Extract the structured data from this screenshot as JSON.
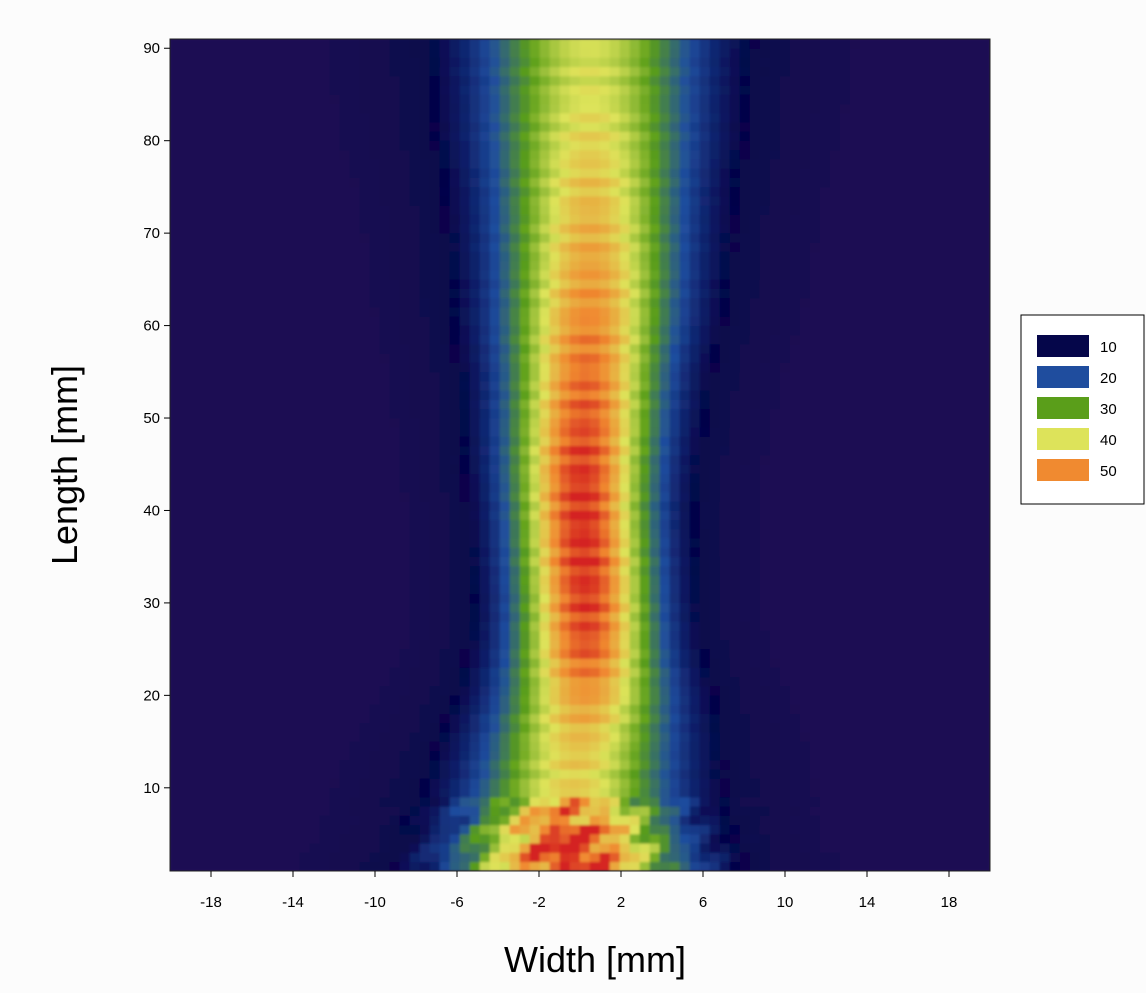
{
  "chart_data": {
    "type": "heatmap",
    "title": "",
    "xlabel": "Width [mm]",
    "ylabel": "Length [mm]",
    "xlim": [
      -20,
      20
    ],
    "ylim": [
      1,
      91
    ],
    "xticks": [
      -18,
      -14,
      -10,
      -6,
      -2,
      2,
      6,
      10,
      14,
      18
    ],
    "yticks": [
      10,
      20,
      30,
      40,
      50,
      60,
      70,
      80,
      90
    ],
    "legend": {
      "position": "right",
      "entries": [
        {
          "label": "10",
          "color": "#05064a"
        },
        {
          "label": "20",
          "color": "#1f4d9e"
        },
        {
          "label": "30",
          "color": "#5a9e1a"
        },
        {
          "label": "40",
          "color": "#dde35a"
        },
        {
          "label": "50",
          "color": "#f08a30"
        }
      ]
    },
    "colorscale": [
      {
        "value": 5,
        "color": "#1b0a52"
      },
      {
        "value": 10,
        "color": "#05064a"
      },
      {
        "value": 20,
        "color": "#1f4d9e"
      },
      {
        "value": 30,
        "color": "#5a9e1a"
      },
      {
        "value": 40,
        "color": "#dde35a"
      },
      {
        "value": 50,
        "color": "#f08a30"
      },
      {
        "value": 58,
        "color": "#d42020"
      }
    ],
    "field_profile": {
      "length_mm": [
        1,
        5,
        10,
        15,
        20,
        25,
        30,
        35,
        40,
        45,
        50,
        55,
        60,
        65,
        70,
        75,
        80,
        85,
        90
      ],
      "center_mm": [
        -0.5,
        -0.5,
        -0.3,
        0.0,
        0.3,
        0.3,
        0.3,
        0.2,
        0.1,
        0.1,
        0.2,
        0.3,
        0.4,
        0.5,
        0.5,
        0.5,
        0.5,
        0.5,
        0.5
      ],
      "peak_value": [
        52,
        50,
        36,
        38,
        42,
        48,
        50,
        51,
        51,
        50,
        48,
        46,
        44,
        42,
        40,
        38,
        36,
        34,
        33
      ],
      "half_width_mm": [
        3.6,
        3.3,
        3.2,
        3.0,
        2.7,
        2.4,
        2.3,
        2.3,
        2.3,
        2.4,
        2.5,
        2.6,
        2.8,
        2.9,
        3.0,
        3.1,
        3.3,
        3.4,
        3.5
      ],
      "background_value": 4
    }
  }
}
